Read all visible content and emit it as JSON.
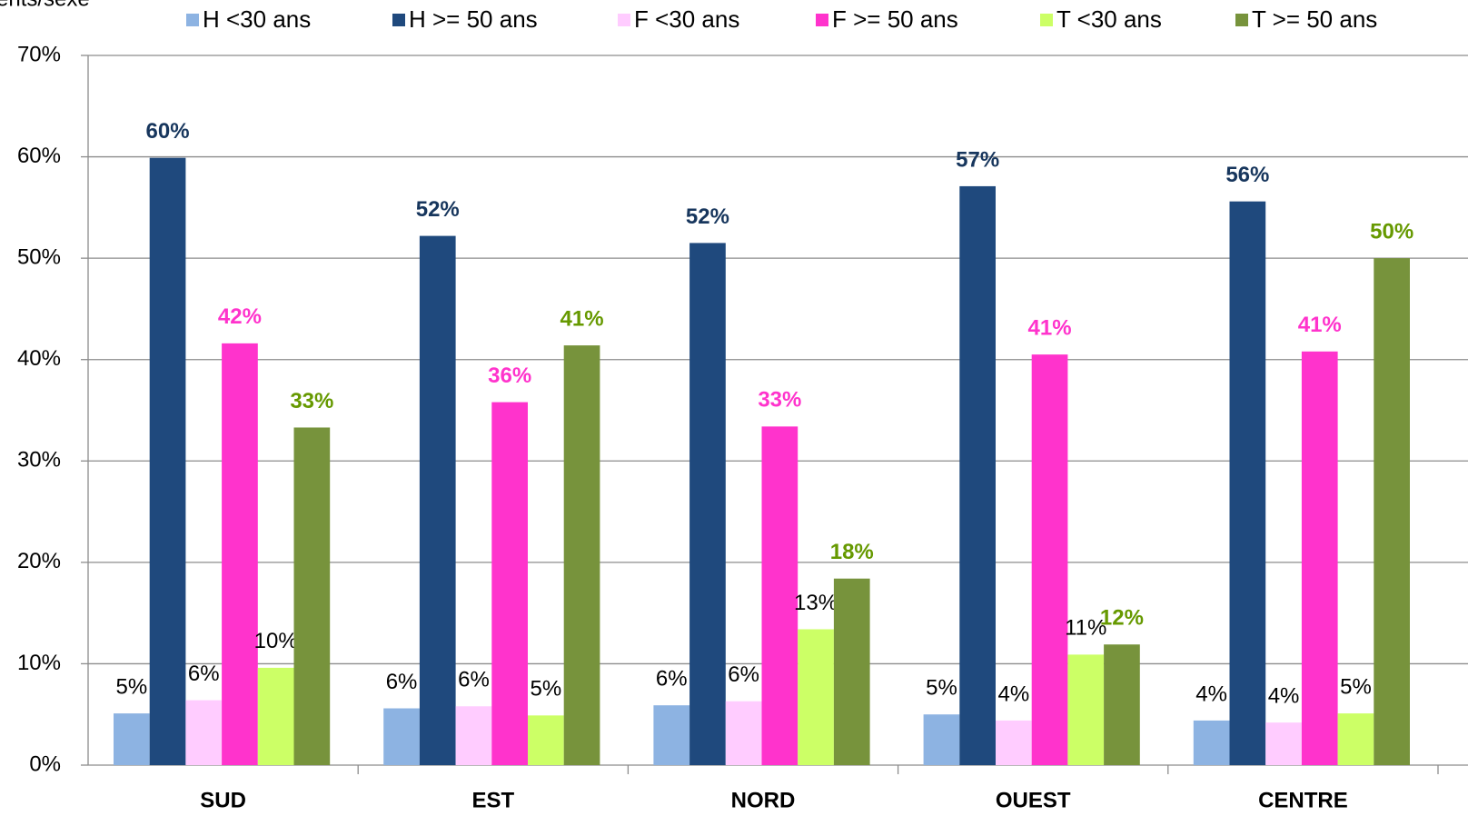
{
  "chart_data": {
    "type": "bar",
    "title": "ents/sexe",
    "categories": [
      "SUD",
      "EST",
      "NORD",
      "OUEST",
      "CENTRE"
    ],
    "series": [
      {
        "name": "H <30 ans",
        "color": "#8db3e2",
        "label_color": "#000000",
        "label_bold": false,
        "values": [
          5.1,
          5.6,
          5.9,
          5.0,
          4.4
        ],
        "value_labels": [
          "5%",
          "6%",
          "6%",
          "5%",
          "4%"
        ]
      },
      {
        "name": "H >= 50 ans",
        "color": "#1f497d",
        "label_color": "#17365d",
        "label_bold": true,
        "values": [
          59.9,
          52.2,
          51.5,
          57.1,
          55.6
        ],
        "value_labels": [
          "60%",
          "52%",
          "52%",
          "57%",
          "56%"
        ]
      },
      {
        "name": "F <30 ans",
        "color": "#ffccff",
        "label_color": "#000000",
        "label_bold": false,
        "values": [
          6.4,
          5.8,
          6.3,
          4.4,
          4.2
        ],
        "value_labels": [
          "6%",
          "6%",
          "6%",
          "4%",
          "4%"
        ]
      },
      {
        "name": "F >= 50 ans",
        "color": "#ff33cc",
        "label_color": "#ff33cc",
        "label_bold": true,
        "values": [
          41.6,
          35.8,
          33.4,
          40.5,
          40.8
        ],
        "value_labels": [
          "42%",
          "36%",
          "33%",
          "41%",
          "41%"
        ]
      },
      {
        "name": "T <30 ans",
        "color": "#ccff66",
        "label_color": "#000000",
        "label_bold": false,
        "values": [
          9.6,
          4.9,
          13.4,
          10.9,
          5.1
        ],
        "value_labels": [
          "10%",
          "5%",
          "13%",
          "11%",
          "5%"
        ]
      },
      {
        "name": "T >= 50 ans",
        "color": "#77933c",
        "label_color": "#669900",
        "label_bold": true,
        "values": [
          33.3,
          41.4,
          18.4,
          11.9,
          50.0
        ],
        "value_labels": [
          "33%",
          "41%",
          "18%",
          "12%",
          "50%"
        ]
      }
    ],
    "ylim": [
      0,
      70
    ],
    "yticks": [
      {
        "value": 0,
        "label": "0%"
      },
      {
        "value": 10,
        "label": "10%"
      },
      {
        "value": 20,
        "label": "20%"
      },
      {
        "value": 30,
        "label": "30%"
      },
      {
        "value": 40,
        "label": "40%"
      },
      {
        "value": 50,
        "label": "50%"
      },
      {
        "value": 60,
        "label": "60%"
      },
      {
        "value": 70,
        "label": "70%"
      }
    ],
    "grid": true,
    "legend": "top"
  }
}
